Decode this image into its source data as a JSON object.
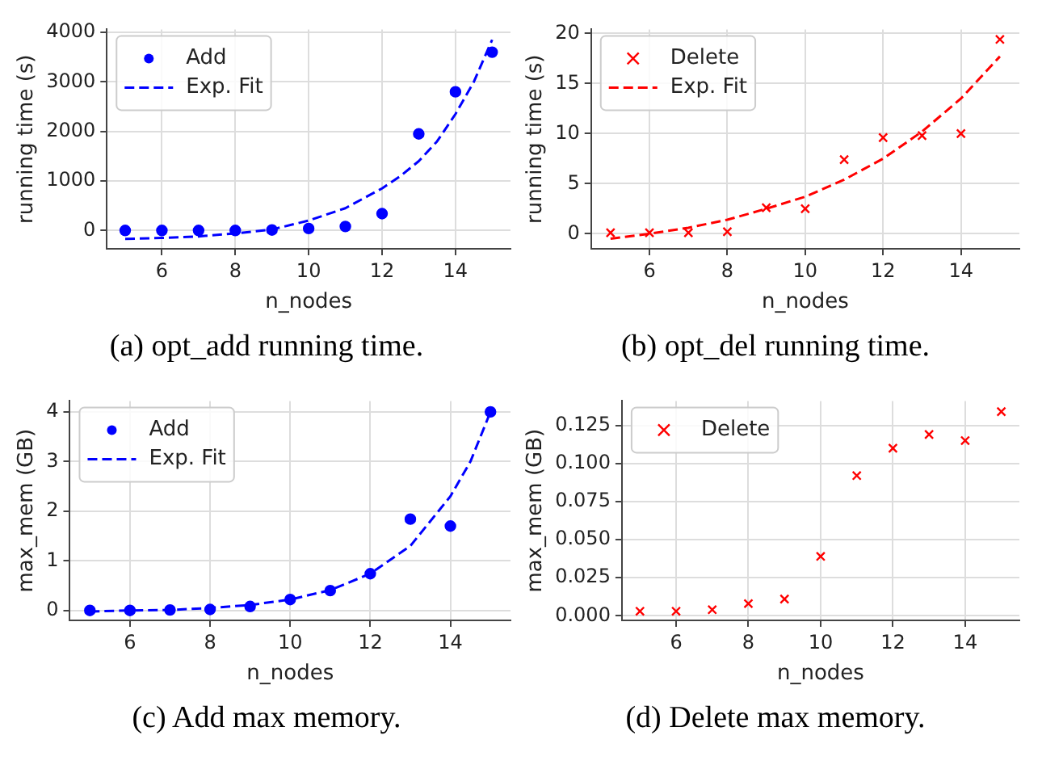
{
  "chart_data": [
    {
      "type": "scatter",
      "title": "(a) opt_add running time.",
      "xlabel": "n_nodes",
      "ylabel": "running time (s)",
      "xlim": [
        4.5,
        15.5
      ],
      "xticks": [
        6,
        8,
        10,
        12,
        14
      ],
      "ylim": [
        -370,
        4060
      ],
      "yticks": [
        0,
        1000,
        2000,
        3000,
        4000
      ],
      "grid": true,
      "legend": "top left",
      "series": [
        {
          "name": "Add",
          "marker": "circle",
          "color": "#0000ff",
          "x": [
            5,
            6,
            7,
            8,
            9,
            10,
            11,
            12,
            13,
            14,
            15
          ],
          "values": [
            0,
            0,
            0,
            0,
            10,
            40,
            80,
            340,
            1950,
            2800,
            3600
          ]
        },
        {
          "name": "Exp. Fit",
          "type": "line",
          "marker": "none",
          "line_style": "dashed",
          "color": "#0000ff",
          "x": [
            5,
            6,
            7,
            8,
            9,
            10,
            11,
            12,
            12.5,
            13,
            13.5,
            14,
            14.5,
            15
          ],
          "values": [
            -170,
            -150,
            -120,
            -60,
            20,
            200,
            450,
            850,
            1100,
            1400,
            1800,
            2350,
            3000,
            3850
          ]
        }
      ]
    },
    {
      "type": "scatter",
      "title": "(b) opt_del running time.",
      "xlabel": "n_nodes",
      "ylabel": "running time (s)",
      "xlim": [
        4.5,
        15.5
      ],
      "xticks": [
        6,
        8,
        10,
        12,
        14
      ],
      "ylim": [
        -1.5,
        20.4
      ],
      "yticks": [
        0,
        5,
        10,
        15,
        20
      ],
      "grid": true,
      "legend": "top left",
      "series": [
        {
          "name": "Delete",
          "marker": "cross",
          "color": "#ff0000",
          "x": [
            5,
            6,
            7,
            8,
            9,
            10,
            11,
            12,
            13,
            14,
            15
          ],
          "values": [
            0.1,
            0.1,
            0.1,
            0.2,
            2.6,
            2.5,
            7.4,
            9.6,
            9.8,
            10.0,
            19.4
          ]
        },
        {
          "name": "Exp. Fit",
          "type": "line",
          "marker": "none",
          "line_style": "dashed",
          "color": "#ff0000",
          "x": [
            5,
            6,
            7,
            8,
            9,
            10,
            11,
            12,
            13,
            14,
            15
          ],
          "values": [
            -0.5,
            0,
            0.6,
            1.4,
            2.5,
            3.7,
            5.4,
            7.5,
            10.2,
            13.5,
            17.7
          ]
        }
      ]
    },
    {
      "type": "scatter",
      "title": "(c) Add max memory.",
      "xlabel": "n_nodes",
      "ylabel": "max_mem (GB)",
      "xlim": [
        4.5,
        15.5
      ],
      "xticks": [
        6,
        8,
        10,
        12,
        14
      ],
      "ylim": [
        -0.2,
        4.22
      ],
      "yticks": [
        0,
        1,
        2,
        3,
        4
      ],
      "grid": true,
      "legend": "top left",
      "series": [
        {
          "name": "Add",
          "marker": "circle",
          "color": "#0000ff",
          "x": [
            5,
            6,
            7,
            8,
            9,
            10,
            11,
            12,
            13,
            14,
            15
          ],
          "values": [
            0,
            0,
            0.01,
            0.02,
            0.08,
            0.22,
            0.4,
            0.74,
            1.84,
            1.7,
            4.0
          ]
        },
        {
          "name": "Exp. Fit",
          "type": "line",
          "marker": "none",
          "line_style": "dashed",
          "color": "#0000ff",
          "x": [
            5,
            6,
            7,
            8,
            9,
            10,
            11,
            12,
            13,
            14,
            14.5,
            15
          ],
          "values": [
            -0.02,
            0,
            0.01,
            0.05,
            0.11,
            0.22,
            0.41,
            0.74,
            1.3,
            2.3,
            3.0,
            4.0
          ]
        }
      ]
    },
    {
      "type": "scatter",
      "title": "(d) Delete max memory.",
      "xlabel": "n_nodes",
      "ylabel": "max_mem (GB)",
      "xlim": [
        4.5,
        15.5
      ],
      "xticks": [
        6,
        8,
        10,
        12,
        14
      ],
      "ylim": [
        -0.003,
        0.141
      ],
      "yticks": [
        {
          "value": 0,
          "label": "0.000"
        },
        {
          "value": 0.025,
          "label": "0.025"
        },
        {
          "value": 0.05,
          "label": "0.050"
        },
        {
          "value": 0.075,
          "label": "0.075"
        },
        {
          "value": 0.1,
          "label": "0.100"
        },
        {
          "value": 0.125,
          "label": "0.125"
        }
      ],
      "grid": true,
      "legend": "top left",
      "series": [
        {
          "name": "Delete",
          "marker": "cross",
          "color": "#ff0000",
          "x": [
            5,
            6,
            7,
            8,
            9,
            10,
            11,
            12,
            13,
            14,
            15
          ],
          "values": [
            0.003,
            0.003,
            0.004,
            0.008,
            0.011,
            0.039,
            0.092,
            0.11,
            0.119,
            0.115,
            0.134
          ]
        }
      ]
    }
  ]
}
